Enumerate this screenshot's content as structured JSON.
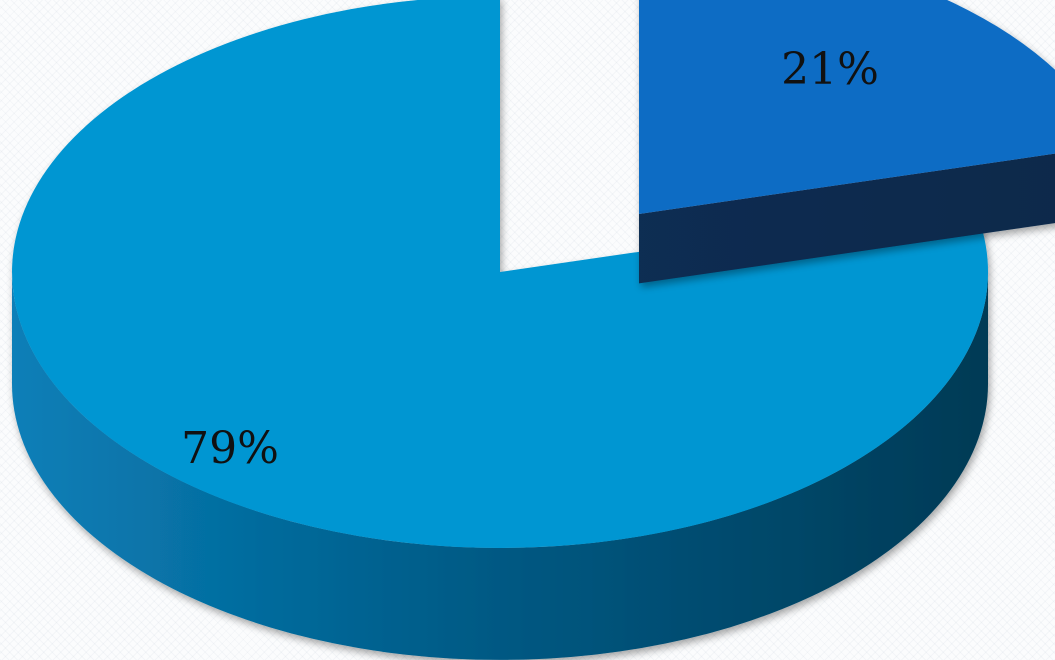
{
  "chart_data": {
    "type": "pie",
    "style": "3d-exploded",
    "legend": "none",
    "slices": [
      {
        "label": "79%",
        "value": 79,
        "color": "#0096D2",
        "side_color_dark": "#003A55",
        "side_color_light": "#0A7FB8"
      },
      {
        "label": "21%",
        "value": 21,
        "color": "#0E6CC4",
        "side_color_dark": "#0B2D52",
        "side_color_light": "#0B2D52"
      }
    ]
  }
}
